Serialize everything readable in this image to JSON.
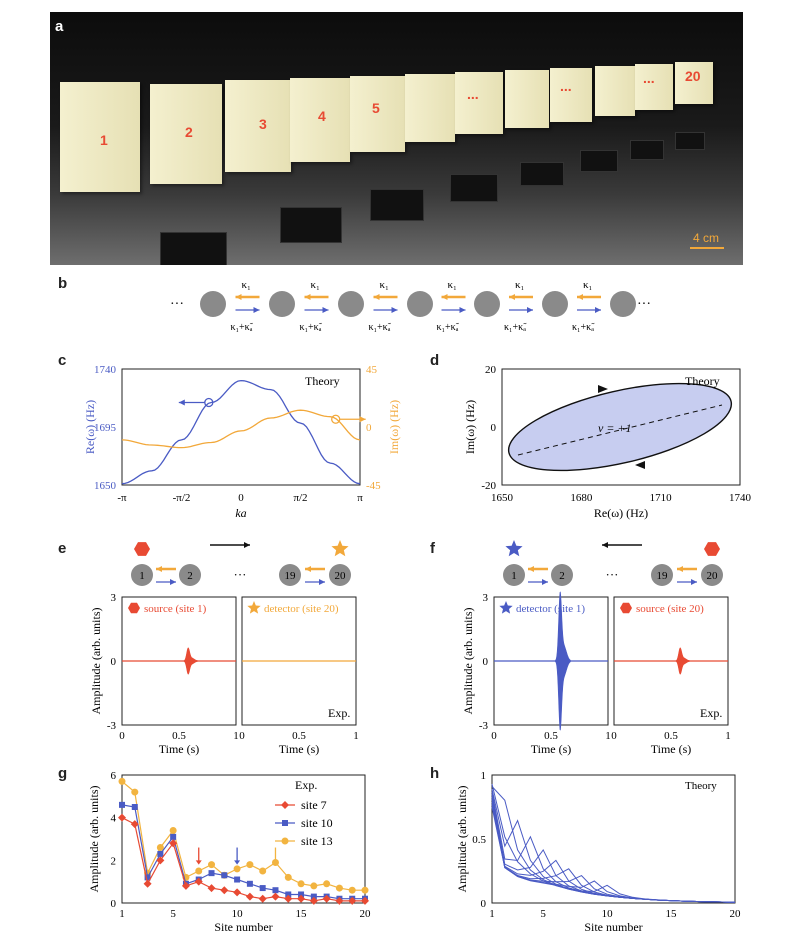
{
  "panels": {
    "a": "a",
    "b": "b",
    "c": "c",
    "d": "d",
    "e": "e",
    "f": "f",
    "g": "g",
    "h": "h"
  },
  "photo": {
    "block_labels": [
      "1",
      "2",
      "3",
      "4",
      "5",
      "...",
      "...",
      "...",
      "20"
    ],
    "scale": "4 cm"
  },
  "chain_b": {
    "dots": "···",
    "top": "κ₁",
    "bottom": "κ₁+κ̃ₐ"
  },
  "chart_data": [
    {
      "panel": "c",
      "type": "line",
      "x_ticks": [
        "-π",
        "-π/2",
        "0",
        "π/2",
        "π"
      ],
      "xlabel": "ka",
      "ylabel_left": "Re(ω) (Hz)",
      "ylabel_right": "Im(ω) (Hz)",
      "left_ticks": [
        "1740",
        "1695",
        "1650"
      ],
      "right_ticks": [
        "45",
        "0",
        "-45"
      ],
      "ylim_left": [
        1650,
        1740
      ],
      "ylim_right": [
        -45,
        45
      ],
      "annotation": "Theory",
      "series": [
        {
          "axis": "left",
          "color": "#4a5bc4",
          "x": [
            -3.1416,
            -2.3562,
            -1.5708,
            -0.7854,
            0,
            0.7854,
            1.5708,
            2.3562,
            3.1416
          ],
          "values": [
            1651,
            1661,
            1685,
            1714,
            1731,
            1724,
            1698,
            1667,
            1651
          ]
        },
        {
          "axis": "right",
          "color": "#f2a83a",
          "x": [
            -3.1416,
            -2.3562,
            -1.5708,
            -0.7854,
            0,
            0.7854,
            1.5708,
            2.3562,
            3.1416
          ],
          "values": [
            -10,
            -14,
            -16,
            -12,
            -3,
            7,
            13,
            8,
            -10
          ]
        }
      ]
    },
    {
      "panel": "d",
      "type": "area",
      "xlabel": "Re(ω) (Hz)",
      "ylabel": "Im(ω) (Hz)",
      "x_ticks": [
        "1650",
        "1680",
        "1710",
        "1740"
      ],
      "y_ticks": [
        "20",
        "0",
        "-20"
      ],
      "xlim": [
        1650,
        1740
      ],
      "ylim": [
        -20,
        20
      ],
      "annotation": "Theory",
      "label": "ν = +1",
      "fill": "#c7cdf0"
    },
    {
      "panel": "e",
      "type": "line",
      "ylabel": "Amplitude (arb. units)",
      "xlabel": "Time (s)",
      "y_ticks": [
        "3",
        "0",
        "-3"
      ],
      "x_ticks": [
        "0",
        "0.5",
        "1"
      ],
      "ylim": [
        -3,
        3
      ],
      "xlim": [
        0,
        1
      ],
      "left_legend": "source (site 1)",
      "right_legend": "detector (site 20)",
      "annotation": "Exp.",
      "pulse_peak": {
        "left": 0.55,
        "right": 0.0
      },
      "pulse_center_s": 0.58,
      "colors": {
        "left": "#e84a33",
        "right": "#f2a83a"
      },
      "chain_sites": [
        "1",
        "2",
        "···",
        "19",
        "20"
      ]
    },
    {
      "panel": "f",
      "type": "line",
      "ylabel": "Amplitude (arb. units)",
      "xlabel": "Time (s)",
      "y_ticks": [
        "3",
        "0",
        "-3"
      ],
      "x_ticks": [
        "0",
        "0.5",
        "1"
      ],
      "ylim": [
        -3,
        3
      ],
      "xlim": [
        0,
        1
      ],
      "left_legend": "detector (site 1)",
      "right_legend": "source (site 20)",
      "annotation": "Exp.",
      "pulse_peak": {
        "left": 2.9,
        "right": 0.55
      },
      "pulse_center_s": 0.58,
      "colors": {
        "left": "#4a5bc4",
        "right": "#e84a33"
      },
      "chain_sites": [
        "1",
        "2",
        "···",
        "19",
        "20"
      ]
    },
    {
      "panel": "g",
      "type": "line",
      "xlabel": "Site number",
      "ylabel": "Amplitude (arb. units)",
      "x_ticks": [
        "1",
        "5",
        "10",
        "15",
        "20"
      ],
      "y_ticks": [
        "6",
        "4",
        "2",
        "0"
      ],
      "xlim": [
        1,
        20
      ],
      "ylim": [
        0,
        6
      ],
      "annotation": "Exp.",
      "x": [
        1,
        2,
        3,
        4,
        5,
        6,
        7,
        8,
        9,
        10,
        11,
        12,
        13,
        14,
        15,
        16,
        17,
        18,
        19,
        20
      ],
      "series": [
        {
          "name": "site 7",
          "color": "#e84a33",
          "marker": "diamond",
          "values": [
            4.0,
            3.7,
            0.9,
            2.0,
            2.8,
            0.8,
            1.0,
            0.7,
            0.6,
            0.5,
            0.3,
            0.2,
            0.3,
            0.2,
            0.2,
            0.1,
            0.2,
            0.1,
            0.1,
            0.1
          ]
        },
        {
          "name": "site 10",
          "color": "#4a5bc4",
          "marker": "square",
          "values": [
            4.6,
            4.5,
            1.2,
            2.3,
            3.1,
            0.9,
            1.1,
            1.4,
            1.3,
            1.1,
            0.9,
            0.7,
            0.6,
            0.4,
            0.4,
            0.3,
            0.3,
            0.2,
            0.2,
            0.2
          ]
        },
        {
          "name": "site 13",
          "color": "#f2b440",
          "marker": "circle",
          "values": [
            5.7,
            5.2,
            1.4,
            2.6,
            3.4,
            1.2,
            1.5,
            1.8,
            1.3,
            1.6,
            1.8,
            1.5,
            1.9,
            1.2,
            0.9,
            0.8,
            0.9,
            0.7,
            0.6,
            0.6
          ]
        }
      ],
      "arrows": [
        {
          "x": 7,
          "color": "#e84a33"
        },
        {
          "x": 10,
          "color": "#4a5bc4"
        },
        {
          "x": 13,
          "color": "#f2b440"
        }
      ]
    },
    {
      "panel": "h",
      "type": "line",
      "xlabel": "Site number",
      "ylabel": "Amplitude (arb. units)",
      "x_ticks": [
        "1",
        "5",
        "10",
        "15",
        "20"
      ],
      "y_ticks": [
        "1",
        "0.5",
        "0"
      ],
      "xlim": [
        1,
        20
      ],
      "ylim": [
        0,
        1
      ],
      "annotation": "Theory",
      "color": "#4a5bc4"
    }
  ]
}
